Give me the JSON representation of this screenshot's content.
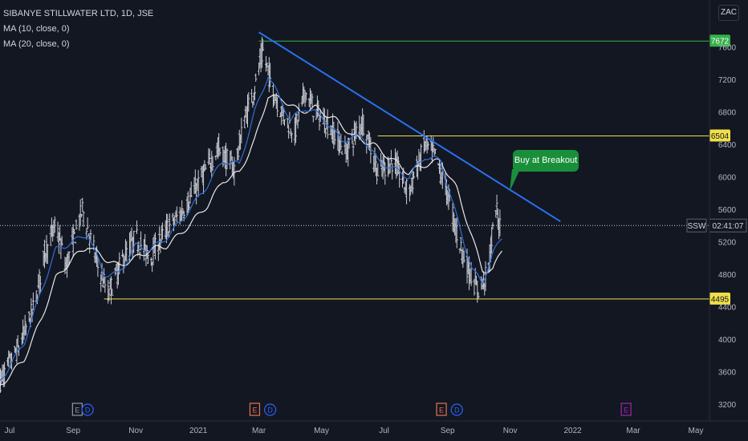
{
  "legend": {
    "title": "SIBANYE STILLWATER LTD, 1D, JSE",
    "ma10": "MA (10, close, 0)",
    "ma20": "MA (20, close, 0)"
  },
  "currency_badge": "ZAC",
  "callout": {
    "text": "Buy at Breakout",
    "color": "#1a8f3a"
  },
  "symbol_tag": "SSW",
  "time_tag": "02:41:07",
  "colors": {
    "background": "#131722",
    "bars": "#c9ccd4",
    "ma10": "#2f6fd6",
    "ma20": "#e8e8e8",
    "trendline": "#2b6ff0",
    "yellow_lines": "#f0e04a",
    "green_line": "#36b04a"
  },
  "event_markers": [
    {
      "label": "E",
      "date": "2020-09-05",
      "style": "earnings-past"
    },
    {
      "label": "D",
      "date": "2020-09-15",
      "style": "dividend"
    },
    {
      "label": "E",
      "date": "2021-02-25",
      "style": "earnings-dividend"
    },
    {
      "label": "D",
      "date": "2021-03-12",
      "style": "dividend"
    },
    {
      "label": "E",
      "date": "2021-08-26",
      "style": "earnings-dividend"
    },
    {
      "label": "D",
      "date": "2021-09-10",
      "style": "dividend"
    },
    {
      "label": "E",
      "date": "2022-02-22",
      "style": "earnings-future"
    }
  ],
  "chart_data": {
    "type": "ohlc",
    "x_axis": {
      "range": [
        "2020-07-01",
        "2022-05-25"
      ],
      "ticks": [
        {
          "label": "Jul",
          "date": "2020-07-01"
        },
        {
          "label": "Sep",
          "date": "2020-09-01"
        },
        {
          "label": "Nov",
          "date": "2020-11-01"
        },
        {
          "label": "2021",
          "date": "2021-01-01"
        },
        {
          "label": "Mar",
          "date": "2021-03-01"
        },
        {
          "label": "May",
          "date": "2021-05-01"
        },
        {
          "label": "Jul",
          "date": "2021-07-01"
        },
        {
          "label": "Sep",
          "date": "2021-09-01"
        },
        {
          "label": "Nov",
          "date": "2021-11-01"
        },
        {
          "label": "2022",
          "date": "2022-01-01"
        },
        {
          "label": "Mar",
          "date": "2022-03-01"
        },
        {
          "label": "May",
          "date": "2022-05-01"
        }
      ]
    },
    "y_axis": {
      "range": [
        3050,
        8400
      ],
      "ticks": [
        3200,
        3600,
        4000,
        4400,
        4800,
        5200,
        5600,
        6000,
        6400,
        6800,
        7200,
        7600,
        8000
      ]
    },
    "grid": false,
    "price_keypoints": [
      [
        "2020-06-20",
        3450
      ],
      [
        "2020-07-10",
        3900
      ],
      [
        "2020-07-25",
        4400
      ],
      [
        "2020-08-05",
        5100
      ],
      [
        "2020-08-15",
        5400
      ],
      [
        "2020-08-25",
        4900
      ],
      [
        "2020-09-10",
        5600
      ],
      [
        "2020-09-25",
        4900
      ],
      [
        "2020-10-05",
        4550
      ],
      [
        "2020-10-20",
        5000
      ],
      [
        "2020-11-01",
        5250
      ],
      [
        "2020-11-15",
        5000
      ],
      [
        "2020-12-01",
        5350
      ],
      [
        "2020-12-15",
        5550
      ],
      [
        "2021-01-05",
        6000
      ],
      [
        "2021-01-20",
        6350
      ],
      [
        "2021-02-05",
        6100
      ],
      [
        "2021-02-15",
        6700
      ],
      [
        "2021-02-25",
        7100
      ],
      [
        "2021-03-05",
        7550
      ],
      [
        "2021-03-15",
        7050
      ],
      [
        "2021-03-25",
        6750
      ],
      [
        "2021-04-05",
        6550
      ],
      [
        "2021-04-15",
        7050
      ],
      [
        "2021-04-25",
        6800
      ],
      [
        "2021-05-10",
        6600
      ],
      [
        "2021-05-25",
        6300
      ],
      [
        "2021-06-10",
        6700
      ],
      [
        "2021-06-25",
        6050
      ],
      [
        "2021-07-10",
        6200
      ],
      [
        "2021-07-25",
        5800
      ],
      [
        "2021-08-10",
        6400
      ],
      [
        "2021-08-20",
        6250
      ],
      [
        "2021-09-01",
        5800
      ],
      [
        "2021-09-10",
        5300
      ],
      [
        "2021-09-20",
        4900
      ],
      [
        "2021-09-30",
        4600
      ],
      [
        "2021-10-10",
        4800
      ],
      [
        "2021-10-18",
        5600
      ],
      [
        "2021-10-24",
        5300
      ]
    ],
    "ma10_keypoints": [
      [
        "2020-06-20",
        3450
      ],
      [
        "2020-07-15",
        3950
      ],
      [
        "2020-08-01",
        4600
      ],
      [
        "2020-08-15",
        5100
      ],
      [
        "2020-09-01",
        5200
      ],
      [
        "2020-09-15",
        5300
      ],
      [
        "2020-10-01",
        4800
      ],
      [
        "2020-10-15",
        4800
      ],
      [
        "2020-11-01",
        5150
      ],
      [
        "2020-11-15",
        5100
      ],
      [
        "2020-12-01",
        5250
      ],
      [
        "2020-12-15",
        5450
      ],
      [
        "2021-01-10",
        5900
      ],
      [
        "2021-01-25",
        6200
      ],
      [
        "2021-02-10",
        6150
      ],
      [
        "2021-02-25",
        6800
      ],
      [
        "2021-03-10",
        7250
      ],
      [
        "2021-03-20",
        7000
      ],
      [
        "2021-04-01",
        6700
      ],
      [
        "2021-04-15",
        6850
      ],
      [
        "2021-05-01",
        6750
      ],
      [
        "2021-05-20",
        6450
      ],
      [
        "2021-06-10",
        6500
      ],
      [
        "2021-06-25",
        6200
      ],
      [
        "2021-07-10",
        6100
      ],
      [
        "2021-07-25",
        6000
      ],
      [
        "2021-08-10",
        6250
      ],
      [
        "2021-08-25",
        6200
      ],
      [
        "2021-09-10",
        5500
      ],
      [
        "2021-09-25",
        4850
      ],
      [
        "2021-10-05",
        4700
      ],
      [
        "2021-10-15",
        5050
      ],
      [
        "2021-10-24",
        5250
      ]
    ],
    "ma20_keypoints": [
      [
        "2020-06-20",
        3400
      ],
      [
        "2020-07-15",
        3750
      ],
      [
        "2020-08-01",
        4250
      ],
      [
        "2020-08-15",
        4750
      ],
      [
        "2020-09-01",
        5000
      ],
      [
        "2020-09-15",
        5150
      ],
      [
        "2020-10-01",
        5000
      ],
      [
        "2020-10-15",
        4900
      ],
      [
        "2020-11-01",
        5000
      ],
      [
        "2020-11-15",
        5100
      ],
      [
        "2020-12-01",
        5150
      ],
      [
        "2020-12-15",
        5300
      ],
      [
        "2021-01-10",
        5650
      ],
      [
        "2021-01-25",
        5950
      ],
      [
        "2021-02-10",
        6050
      ],
      [
        "2021-02-25",
        6450
      ],
      [
        "2021-03-10",
        7000
      ],
      [
        "2021-03-25",
        6950
      ],
      [
        "2021-04-10",
        6800
      ],
      [
        "2021-04-25",
        6850
      ],
      [
        "2021-05-15",
        6700
      ],
      [
        "2021-06-01",
        6500
      ],
      [
        "2021-06-20",
        6400
      ],
      [
        "2021-07-10",
        6200
      ],
      [
        "2021-07-25",
        6050
      ],
      [
        "2021-08-10",
        6150
      ],
      [
        "2021-08-25",
        6200
      ],
      [
        "2021-09-10",
        5850
      ],
      [
        "2021-09-25",
        5250
      ],
      [
        "2021-10-05",
        4850
      ],
      [
        "2021-10-15",
        4850
      ],
      [
        "2021-10-24",
        5100
      ]
    ],
    "horizontal_levels": [
      {
        "value": 7672,
        "label": "7672",
        "from": "2021-03-01",
        "color": "#36b04a"
      },
      {
        "value": 6504,
        "label": "6504",
        "from": "2021-06-25",
        "color": "#f0e04a"
      },
      {
        "value": 4495,
        "label": "4495",
        "from": "2020-10-01",
        "color": "#f0e04a"
      }
    ],
    "trendline": {
      "start": [
        "2021-03-01",
        7780
      ],
      "end": [
        "2021-12-20",
        5450
      ]
    },
    "current_price_line": 5400
  }
}
